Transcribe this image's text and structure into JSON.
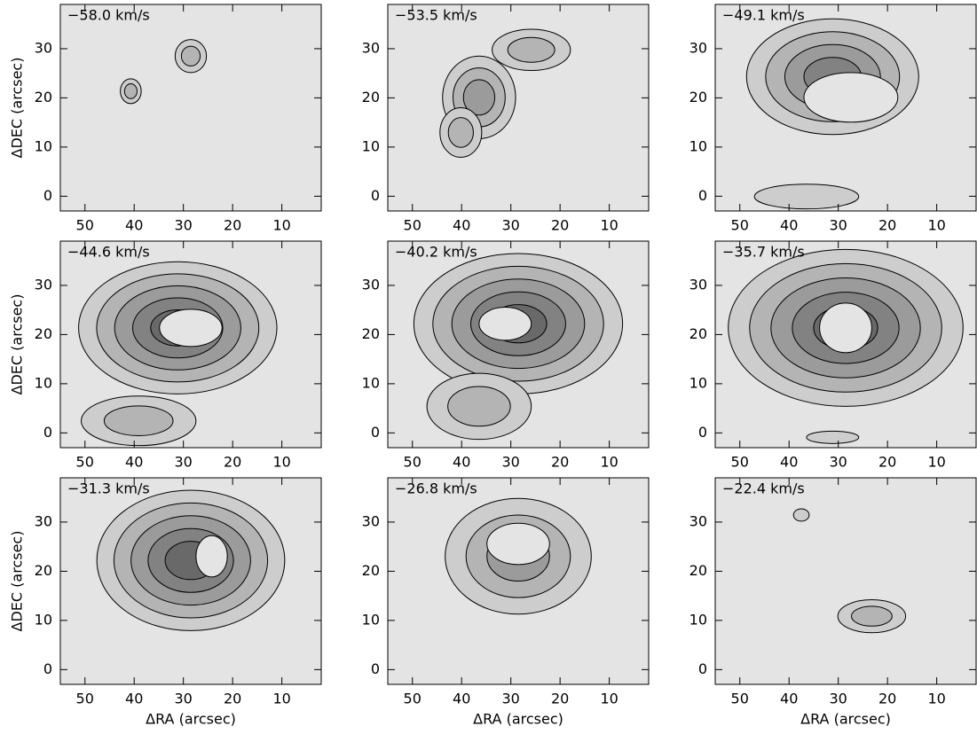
{
  "chart_data": [
    {
      "type": "contour",
      "title": "−58.0 km/s",
      "ylabel": "ΔDEC (arcsec)",
      "xlim": [
        55,
        2
      ],
      "ylim": [
        -3,
        39
      ],
      "xticks": [
        50,
        40,
        30,
        20,
        10
      ],
      "yticks": [
        0,
        10,
        20,
        30
      ]
    },
    {
      "type": "contour",
      "title": "−53.5 km/s",
      "xlim": [
        55,
        2
      ],
      "ylim": [
        -3,
        39
      ],
      "xticks": [
        50,
        40,
        30,
        20,
        10
      ],
      "yticks": [
        0,
        10,
        20,
        30
      ]
    },
    {
      "type": "contour",
      "title": "−49.1 km/s",
      "xlim": [
        55,
        2
      ],
      "ylim": [
        -3,
        39
      ],
      "xticks": [
        50,
        40,
        30,
        20,
        10
      ],
      "yticks": [
        0,
        10,
        20,
        30
      ]
    },
    {
      "type": "contour",
      "title": "−44.6 km/s",
      "ylabel": "ΔDEC (arcsec)",
      "xlim": [
        55,
        2
      ],
      "ylim": [
        -3,
        39
      ],
      "xticks": [
        50,
        40,
        30,
        20,
        10
      ],
      "yticks": [
        0,
        10,
        20,
        30
      ]
    },
    {
      "type": "contour",
      "title": "−40.2 km/s",
      "xlim": [
        55,
        2
      ],
      "ylim": [
        -3,
        39
      ],
      "xticks": [
        50,
        40,
        30,
        20,
        10
      ],
      "yticks": [
        0,
        10,
        20,
        30
      ]
    },
    {
      "type": "contour",
      "title": "−35.7 km/s",
      "xlim": [
        55,
        2
      ],
      "ylim": [
        -3,
        39
      ],
      "xticks": [
        50,
        40,
        30,
        20,
        10
      ],
      "yticks": [
        0,
        10,
        20,
        30
      ]
    },
    {
      "type": "contour",
      "title": "−31.3 km/s",
      "ylabel": "ΔDEC (arcsec)",
      "xlabel": "ΔRA (arcsec)",
      "xlim": [
        55,
        2
      ],
      "ylim": [
        -3,
        39
      ],
      "xticks": [
        50,
        40,
        30,
        20,
        10
      ],
      "yticks": [
        0,
        10,
        20,
        30
      ]
    },
    {
      "type": "contour",
      "title": "−26.8 km/s",
      "xlabel": "ΔRA (arcsec)",
      "xlim": [
        55,
        2
      ],
      "ylim": [
        -3,
        39
      ],
      "xticks": [
        50,
        40,
        30,
        20,
        10
      ],
      "yticks": [
        0,
        10,
        20,
        30
      ]
    },
    {
      "type": "contour",
      "title": "−22.4 km/s",
      "xlabel": "ΔRA (arcsec)",
      "xlim": [
        55,
        2
      ],
      "ylim": [
        -3,
        39
      ],
      "xticks": [
        50,
        40,
        30,
        20,
        10
      ],
      "yticks": [
        0,
        10,
        20,
        30
      ]
    }
  ]
}
